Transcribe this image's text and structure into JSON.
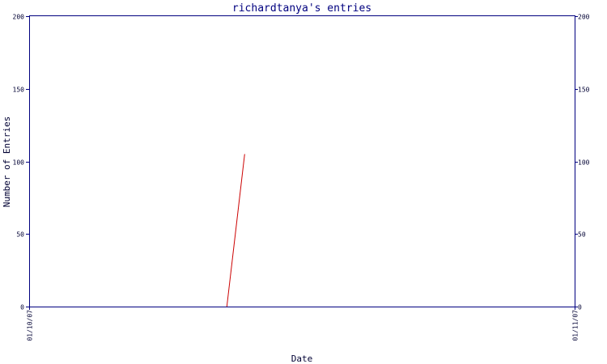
{
  "chart_data": {
    "type": "line",
    "title": "richardtanya's entries",
    "xlabel": "Date",
    "ylabel": "Number of Entries",
    "x_ticks": [
      "01/10/07",
      "01/11/07"
    ],
    "x_domain": [
      "01/10/07",
      "01/11/07"
    ],
    "y_ticks": [
      "0",
      "50",
      "100",
      "150",
      "200"
    ],
    "ylim": [
      0,
      200
    ],
    "grid": false,
    "right_axis": true,
    "series": [
      {
        "color": "#cc0000",
        "points": [
          {
            "x": "2007-01-10T08:42",
            "y": 0
          },
          {
            "x": "2007-01-10T09:29",
            "y": 105
          }
        ]
      }
    ],
    "colors": {
      "axis": "#00007f",
      "title": "#00007f",
      "text": "#000033",
      "line": "#cc0000"
    }
  }
}
